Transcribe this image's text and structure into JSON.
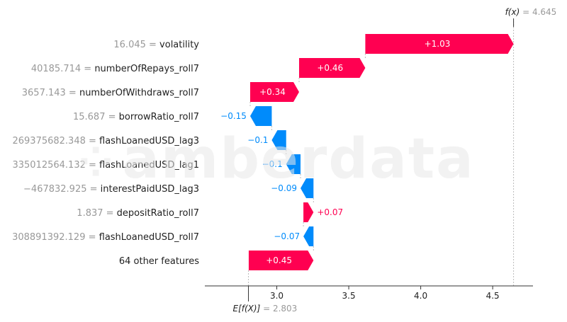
{
  "watermark": {
    "text": "amberdata",
    "icon": "dots-logo-icon"
  },
  "chart_data": {
    "type": "waterfall",
    "base_value": 2.803,
    "output_value": 4.645,
    "base_label_prefix": "E[f(X)]",
    "output_label_prefix": "f(x)",
    "base_value_text": "= 2.803",
    "output_value_text": "= 4.645",
    "xlim": [
      2.5,
      4.78
    ],
    "xticks": [
      3.0,
      3.5,
      4.0,
      4.5
    ],
    "xtick_labels": [
      "3.0",
      "3.5",
      "4.0",
      "4.5"
    ],
    "colors": {
      "positive": "#ff0051",
      "negative": "#008bfb",
      "axis": "#333333",
      "connector": "#bbbbbb"
    },
    "features": [
      {
        "value": "16.045",
        "name": "volatility",
        "shap": 1.03,
        "label": "+1.03"
      },
      {
        "value": "40185.714",
        "name": "numberOfRepays_roll7",
        "shap": 0.46,
        "label": "+0.46"
      },
      {
        "value": "3657.143",
        "name": "numberOfWithdraws_roll7",
        "shap": 0.34,
        "label": "+0.34"
      },
      {
        "value": "15.687",
        "name": "borrowRatio_roll7",
        "shap": -0.15,
        "label": "−0.15"
      },
      {
        "value": "269375682.348",
        "name": "flashLoanedUSD_lag3",
        "shap": -0.1,
        "label": "−0.1"
      },
      {
        "value": "335012564.132",
        "name": "flashLoanedUSD_lag1",
        "shap": -0.1,
        "label": "−0.1"
      },
      {
        "value": "−467832.925",
        "name": "interestPaidUSD_lag3",
        "shap": -0.09,
        "label": "−0.09"
      },
      {
        "value": "1.837",
        "name": "depositRatio_roll7",
        "shap": 0.07,
        "label": "+0.07"
      },
      {
        "value": "308891392.129",
        "name": "flashLoanedUSD_roll7",
        "shap": -0.07,
        "label": "−0.07"
      },
      {
        "value": "",
        "name": "64 other features",
        "shap": 0.45,
        "label": "+0.45"
      }
    ]
  }
}
